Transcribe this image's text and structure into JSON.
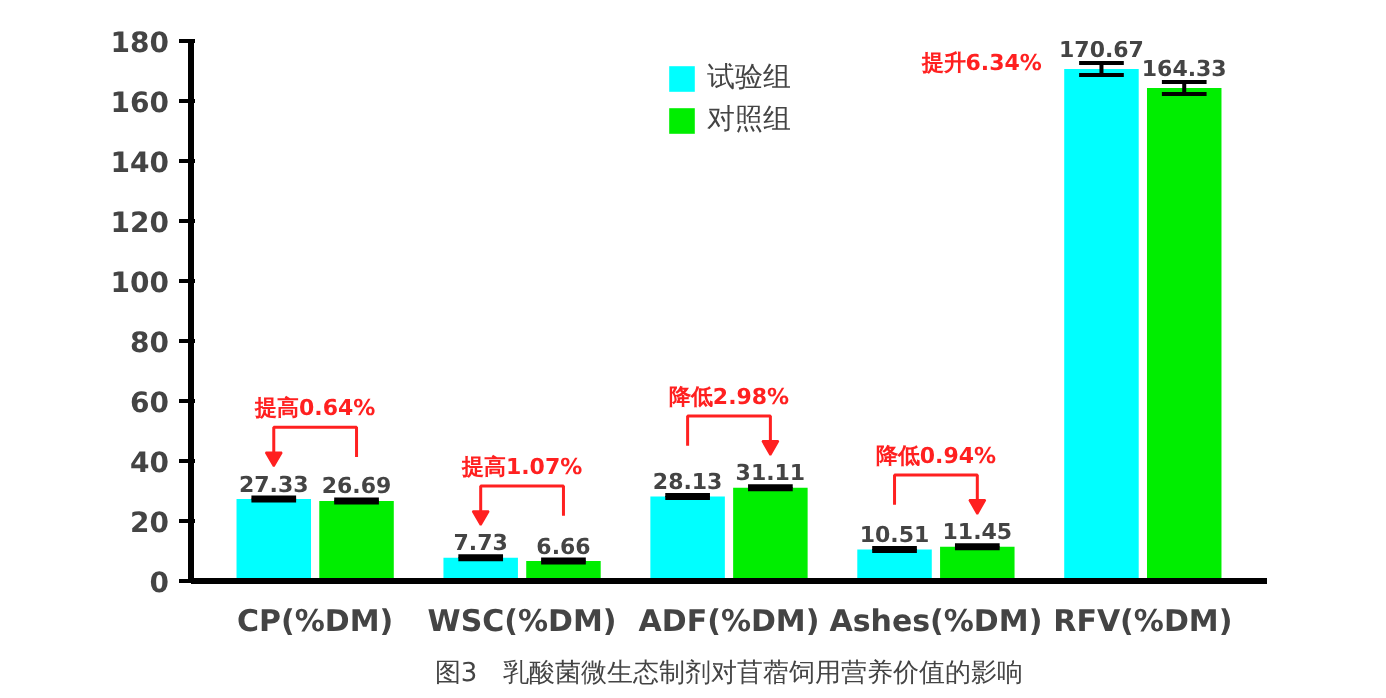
{
  "chart_data": {
    "type": "bar",
    "categories": [
      "CP(%DM)",
      "WSC(%DM)",
      "ADF(%DM)",
      "Ashes(%DM)",
      "RFV(%DM)"
    ],
    "series": [
      {
        "name": "试验组",
        "color": "#00ffff",
        "values": [
          27.33,
          7.73,
          28.13,
          10.51,
          170.67
        ],
        "errors": [
          0.5,
          0.5,
          0.5,
          0.5,
          2
        ]
      },
      {
        "name": "对照组",
        "color": "#00ee00",
        "values": [
          26.69,
          6.66,
          31.11,
          11.45,
          164.33
        ],
        "errors": [
          0.5,
          0.5,
          0.5,
          0.5,
          2
        ]
      }
    ],
    "ylim": [
      0,
      180
    ],
    "yticks": [
      0,
      20,
      40,
      60,
      80,
      100,
      120,
      140,
      160,
      180
    ],
    "data_labels": true,
    "legend": "top",
    "grid": false,
    "annotations": [
      "提高0.64%",
      "提高1.07%",
      "降低2.98%",
      "降低0.94%",
      "提升6.34%",
      "图3　乳酸菌微生态制剂对苜蓿饲用营养价值的影响"
    ]
  }
}
